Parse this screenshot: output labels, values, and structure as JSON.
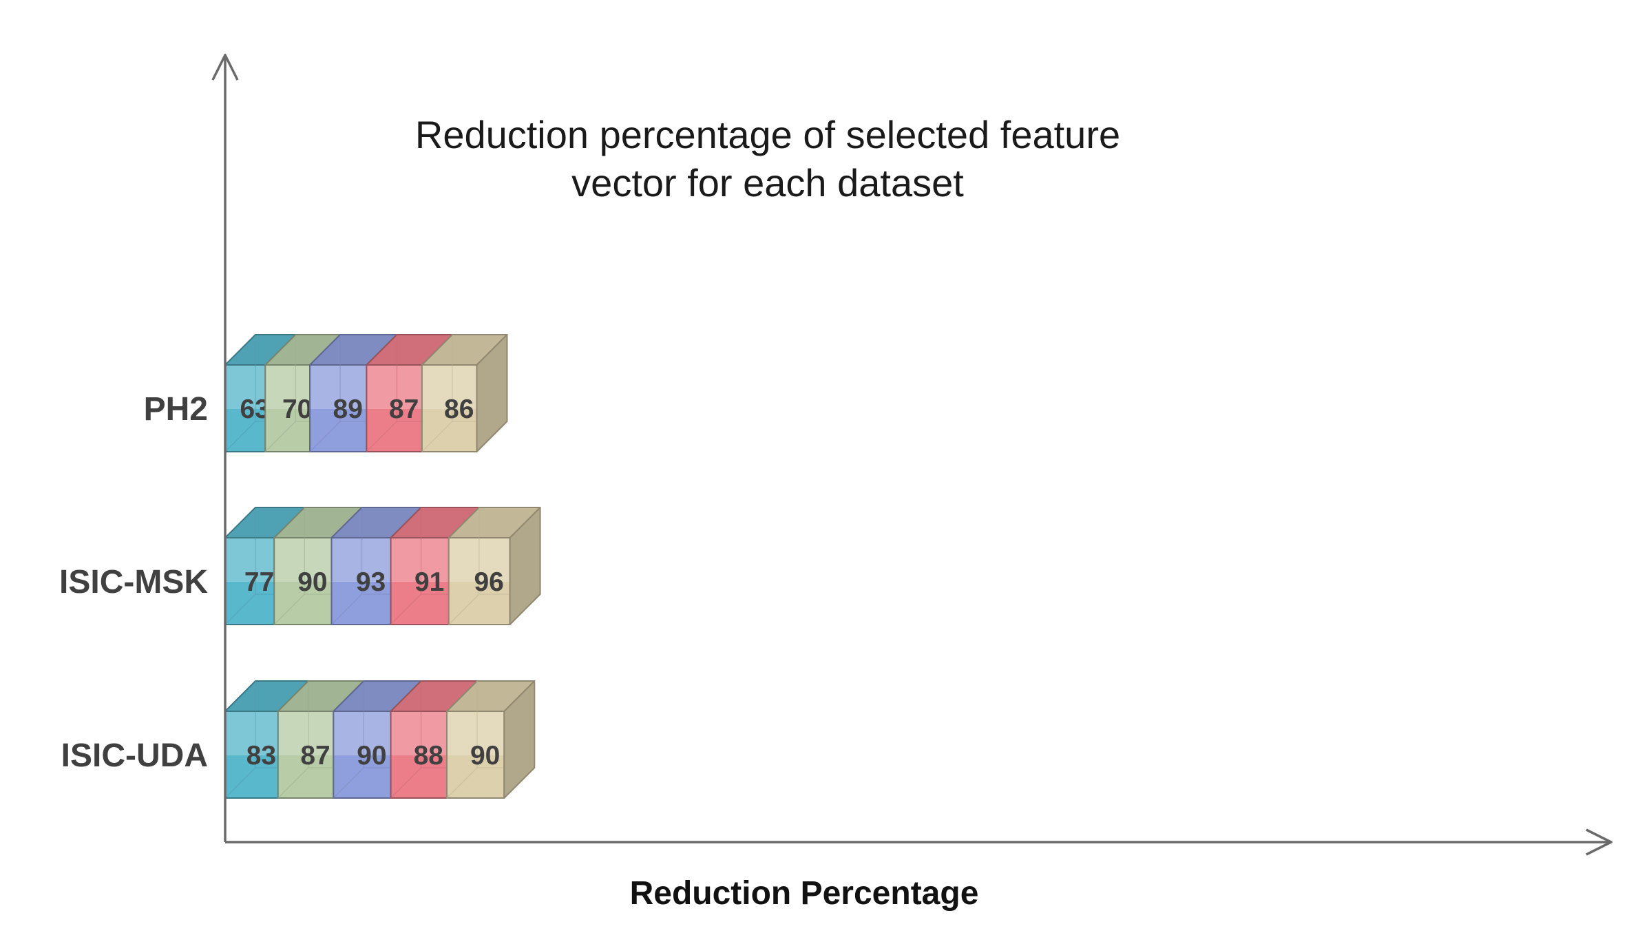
{
  "chart_data": {
    "type": "bar",
    "orientation": "horizontal",
    "stacked": true,
    "style": "3d",
    "title_lines": [
      "Reduction percentage of selected feature",
      "vector for each dataset"
    ],
    "xlabel": "Reduction Percentage",
    "ylabel": "",
    "categories": [
      "PH2",
      "ISIC-MSK",
      "ISIC-UDA"
    ],
    "series": [
      {
        "values": [
          63,
          77,
          83
        ],
        "color": "#5ab8cc"
      },
      {
        "values": [
          70,
          90,
          87
        ],
        "color": "#b7cca7"
      },
      {
        "values": [
          89,
          93,
          90
        ],
        "color": "#8f9fdd"
      },
      {
        "values": [
          87,
          91,
          88
        ],
        "color": "#ec7e89"
      },
      {
        "values": [
          86,
          96,
          90
        ],
        "color": "#ddd1ad"
      }
    ],
    "grid": false,
    "legend": "none"
  }
}
